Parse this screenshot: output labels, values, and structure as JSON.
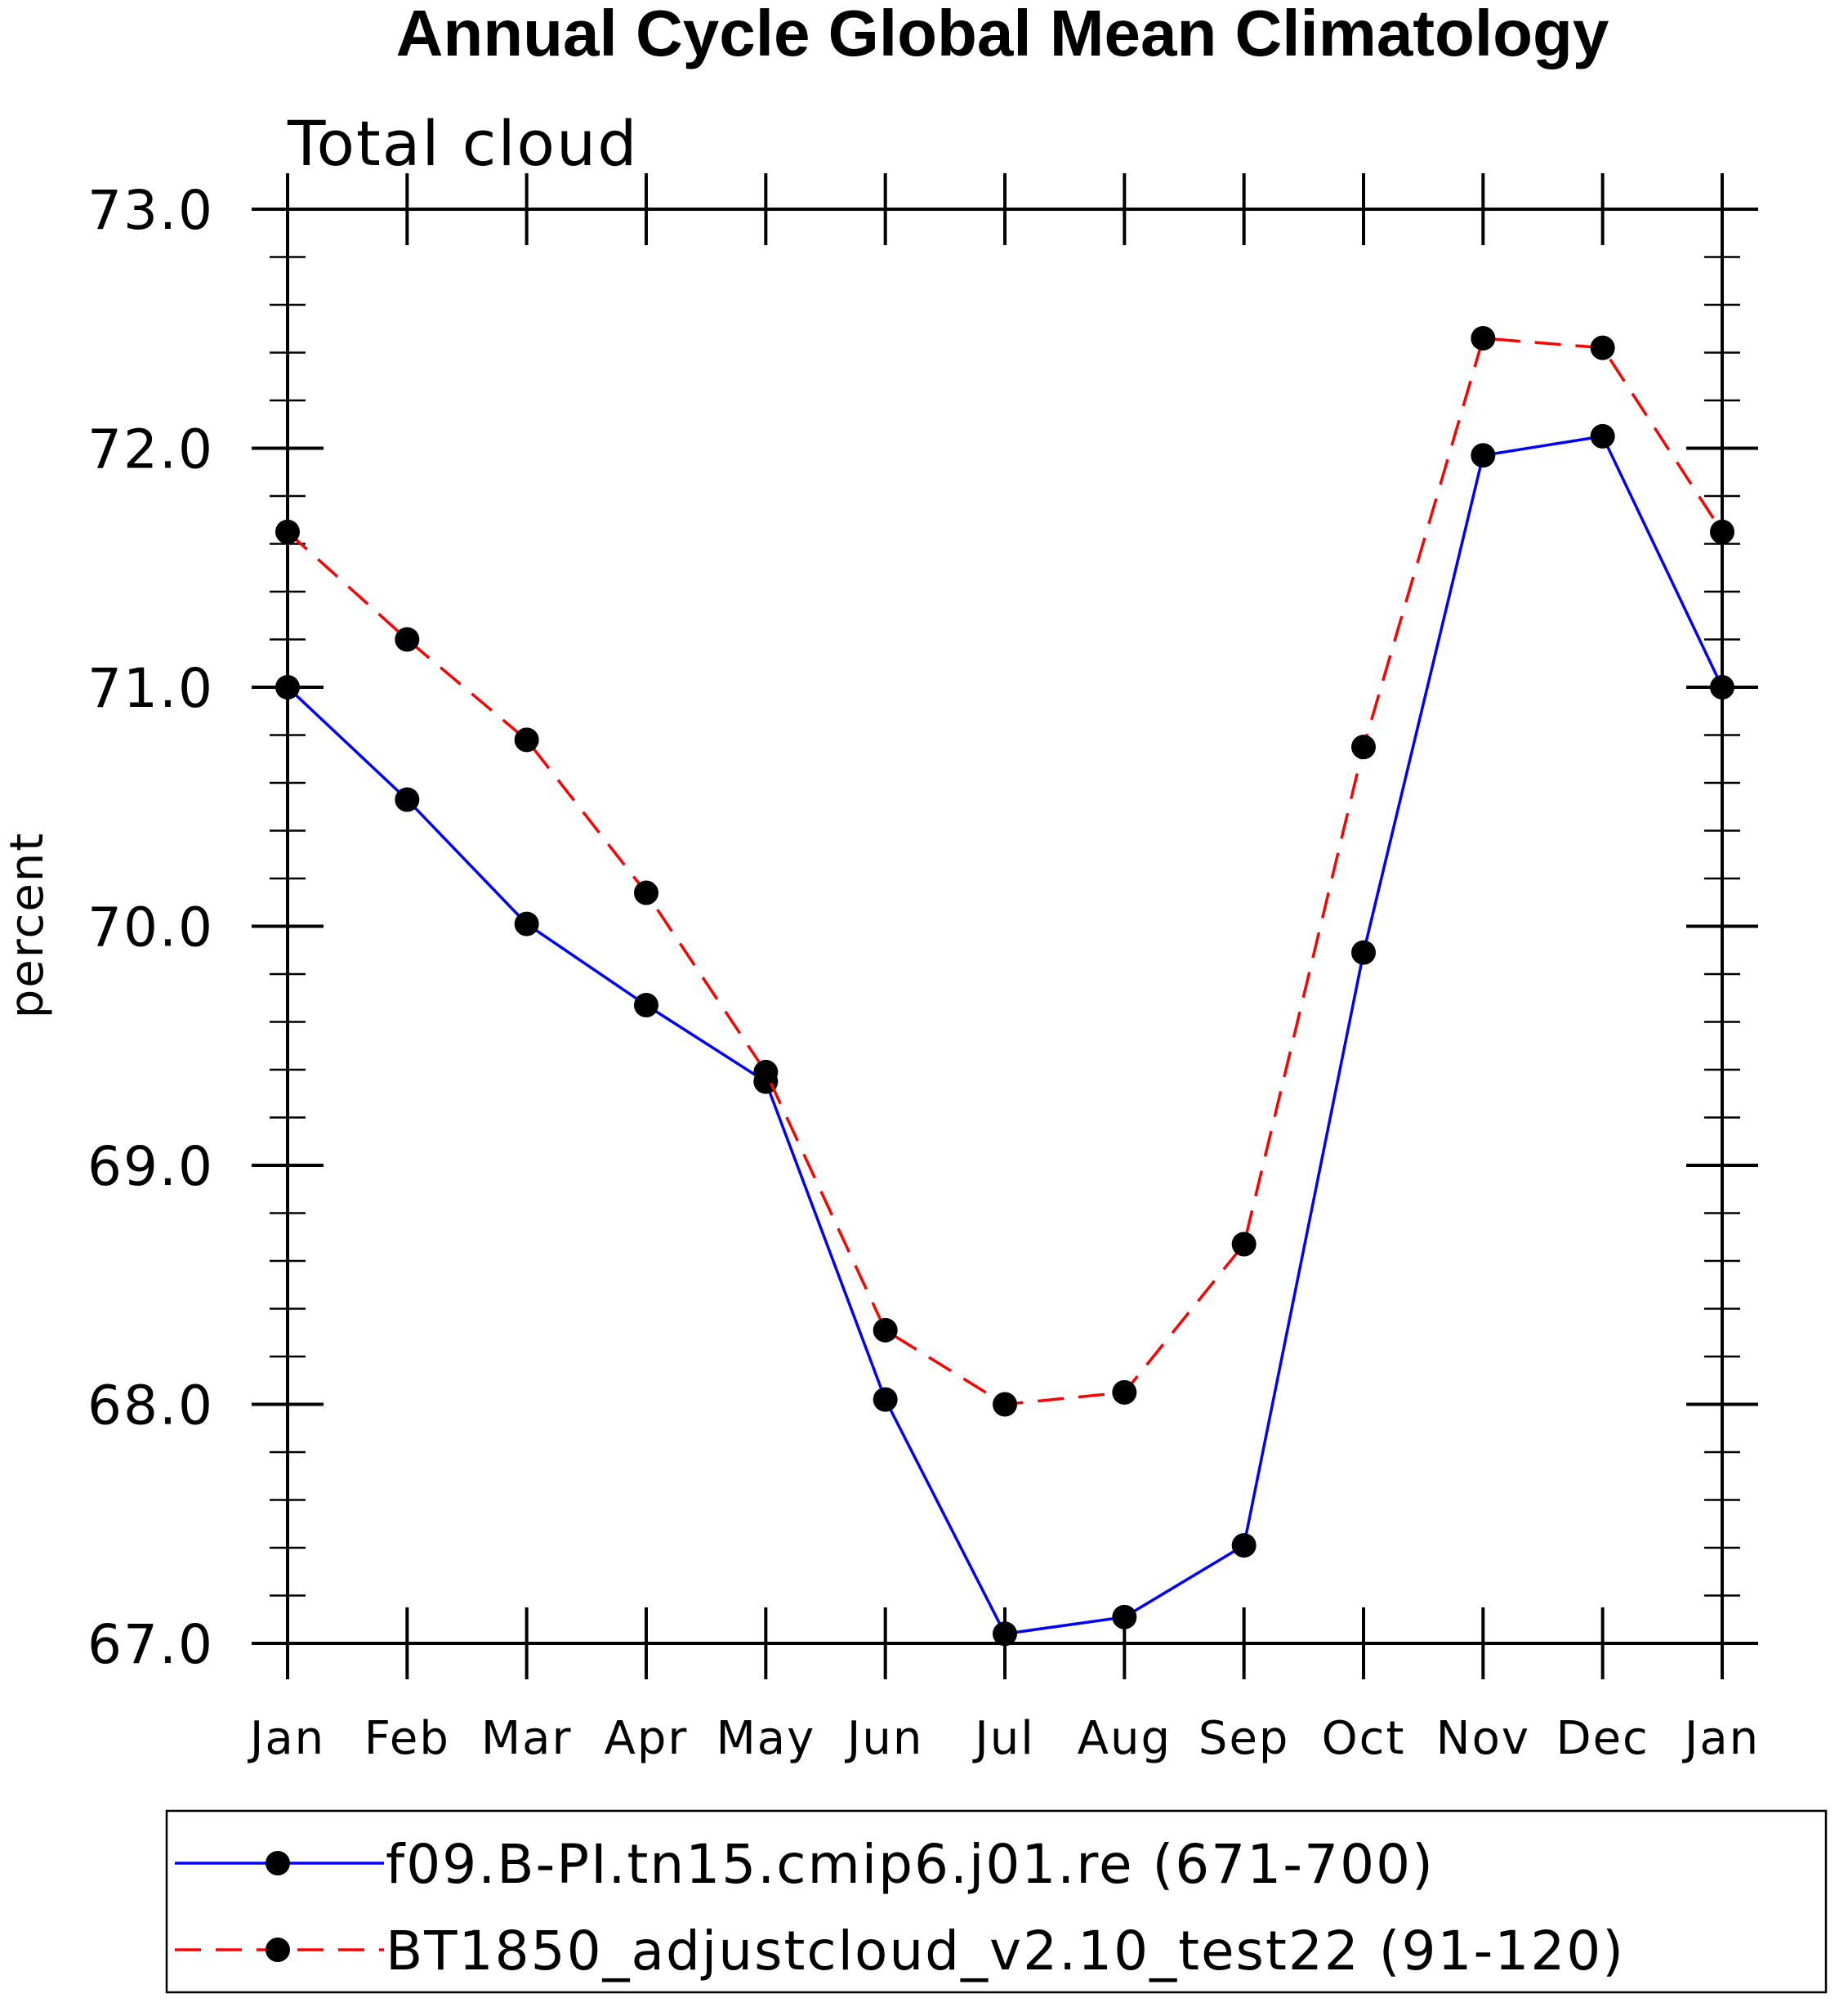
{
  "chart_data": {
    "type": "line",
    "title": "Annual Cycle Global Mean Climatology",
    "subtitle": "Total cloud",
    "xlabel": "",
    "ylabel": "percent",
    "categories": [
      "Jan",
      "Feb",
      "Mar",
      "Apr",
      "May",
      "Jun",
      "Jul",
      "Aug",
      "Sep",
      "Oct",
      "Nov",
      "Dec",
      "Jan"
    ],
    "ylim": [
      67.0,
      73.0
    ],
    "yticks": [
      67.0,
      68.0,
      69.0,
      70.0,
      71.0,
      72.0,
      73.0
    ],
    "ytick_labels": [
      "67.0",
      "68.0",
      "69.0",
      "70.0",
      "71.0",
      "72.0",
      "73.0"
    ],
    "yminor_step": 0.2,
    "grid": false,
    "legend_position": "bottom",
    "series": [
      {
        "name": "f09.B-PI.tn15.cmip6.j01.re (671-700)",
        "color": "#0000ff",
        "dash": "solid",
        "marker": "filled-circle",
        "values": [
          71.0,
          70.53,
          70.01,
          69.67,
          69.35,
          68.02,
          67.04,
          67.11,
          67.41,
          69.89,
          71.97,
          72.05,
          71.0
        ]
      },
      {
        "name": "BT1850_adjustcloud_v2.10_test22 (91-120)",
        "color": "#ff0000",
        "dash": "dashed",
        "marker": "filled-circle",
        "values": [
          71.65,
          71.2,
          70.78,
          70.14,
          69.39,
          68.31,
          68.0,
          68.05,
          68.67,
          70.75,
          72.46,
          72.42,
          71.65
        ]
      }
    ]
  }
}
